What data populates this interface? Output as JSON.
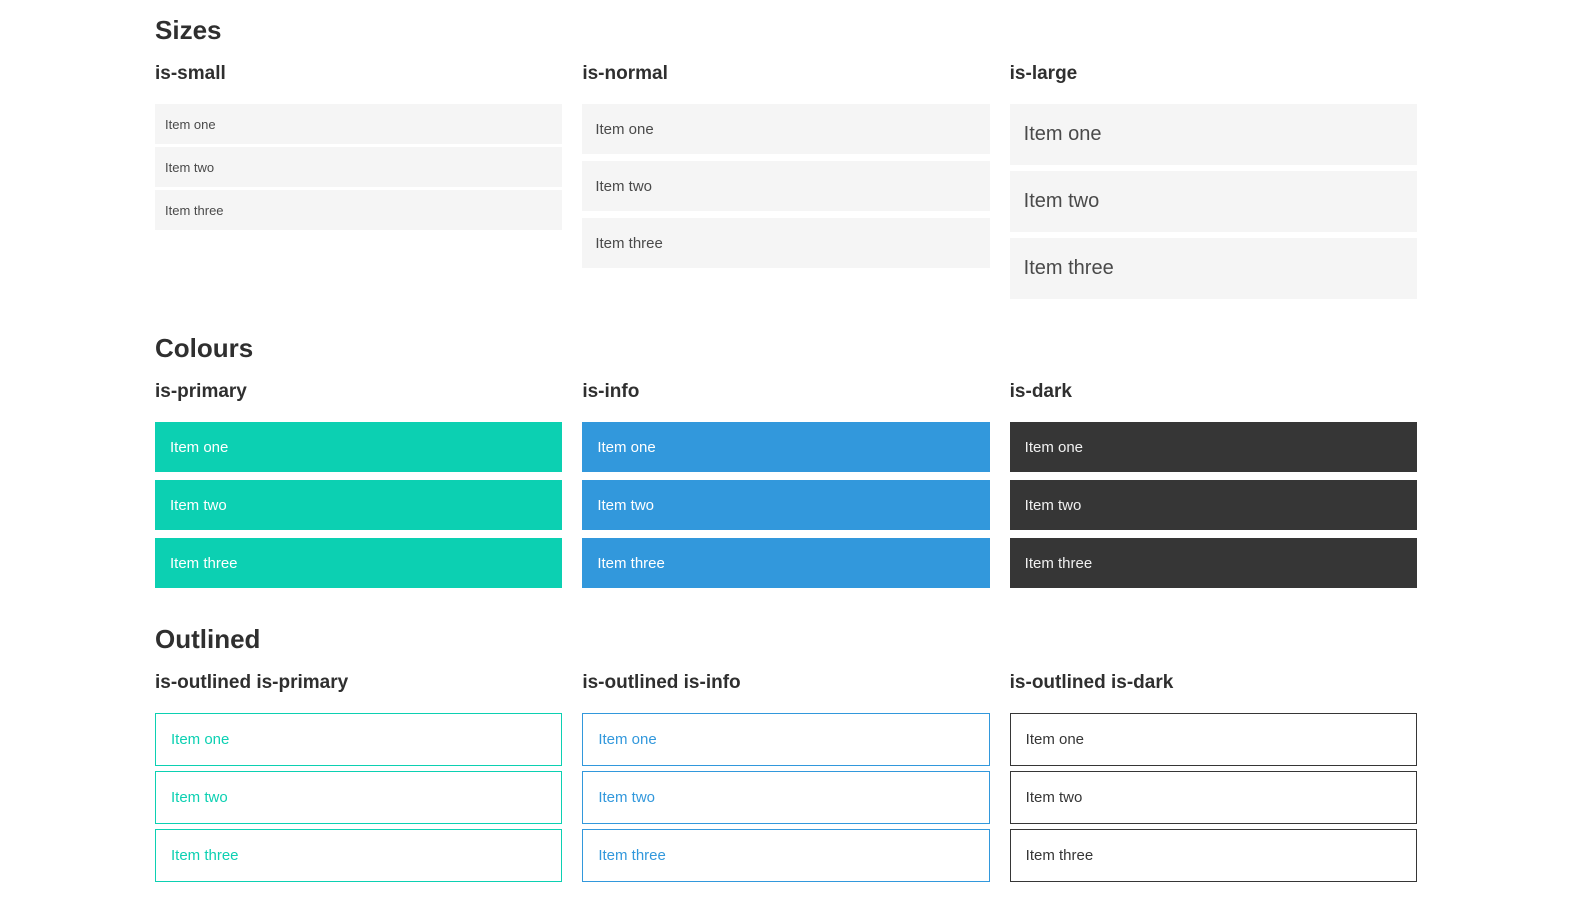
{
  "colors": {
    "primary": "#0cd0b2",
    "info": "#3298dc",
    "dark": "#363636",
    "item_bg": "#f5f5f5",
    "item_text": "#4a4a4a",
    "light_text": "#ffffff",
    "dark_item_text": "#f0f0f0",
    "heading_text": "#2f2f2f"
  },
  "sections": [
    {
      "title": "Sizes",
      "columns": [
        {
          "label": "is-small",
          "items": [
            "Item one",
            "Item two",
            "Item three"
          ]
        },
        {
          "label": "is-normal",
          "items": [
            "Item one",
            "Item two",
            "Item three"
          ]
        },
        {
          "label": "is-large",
          "items": [
            "Item one",
            "Item two",
            "Item three"
          ]
        }
      ]
    },
    {
      "title": "Colours",
      "columns": [
        {
          "label": "is-primary",
          "items": [
            "Item one",
            "Item two",
            "Item three"
          ]
        },
        {
          "label": "is-info",
          "items": [
            "Item one",
            "Item two",
            "Item three"
          ]
        },
        {
          "label": "is-dark",
          "items": [
            "Item one",
            "Item two",
            "Item three"
          ]
        }
      ]
    },
    {
      "title": "Outlined",
      "columns": [
        {
          "label": "is-outlined is-primary",
          "items": [
            "Item one",
            "Item two",
            "Item three"
          ]
        },
        {
          "label": "is-outlined is-info",
          "items": [
            "Item one",
            "Item two",
            "Item three"
          ]
        },
        {
          "label": "is-outlined is-dark",
          "items": [
            "Item one",
            "Item two",
            "Item three"
          ]
        }
      ]
    }
  ]
}
